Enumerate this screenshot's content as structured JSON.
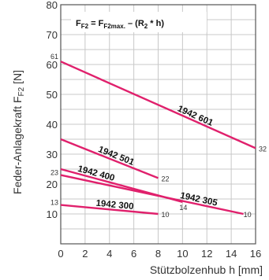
{
  "chart_data": {
    "type": "line",
    "xlabel": "Stützbolzenhub h [mm]",
    "ylabel_main": "Feder-Anlagekraft F",
    "ylabel_sub": "F2",
    "ylabel_unit": " [N]",
    "xlim": [
      0,
      16
    ],
    "ylim": [
      0,
      80
    ],
    "x_ticks": [
      0,
      2,
      4,
      6,
      8,
      10,
      12,
      14,
      16
    ],
    "y_ticks": [
      10,
      20,
      30,
      40,
      50,
      60,
      70,
      80
    ],
    "grid": true,
    "line_color": "#e0206c",
    "formula": {
      "lhs_main": "F",
      "lhs_sub": "F2",
      "eq": " = F",
      "max_sub": "F2max.",
      "rhs": " – (R",
      "r_sub": "2",
      "tail": " * h)"
    },
    "series": [
      {
        "name": "1942 601",
        "x": [
          0,
          16
        ],
        "y": [
          61,
          32
        ],
        "start_label": "61",
        "end_label": "32"
      },
      {
        "name": "1942 501",
        "x": [
          0,
          8
        ],
        "y": [
          35,
          22
        ],
        "start_label": "",
        "end_label": "22"
      },
      {
        "name": "1942 400",
        "x": [
          0,
          10
        ],
        "y": [
          25,
          14
        ],
        "start_label": "",
        "end_label": "14"
      },
      {
        "name": "1942 305",
        "x": [
          0,
          15
        ],
        "y": [
          23,
          10
        ],
        "start_label": "23",
        "end_label": "10"
      },
      {
        "name": "1942 300",
        "x": [
          0,
          8
        ],
        "y": [
          13,
          10
        ],
        "start_label": "13",
        "end_label": "10"
      }
    ]
  }
}
